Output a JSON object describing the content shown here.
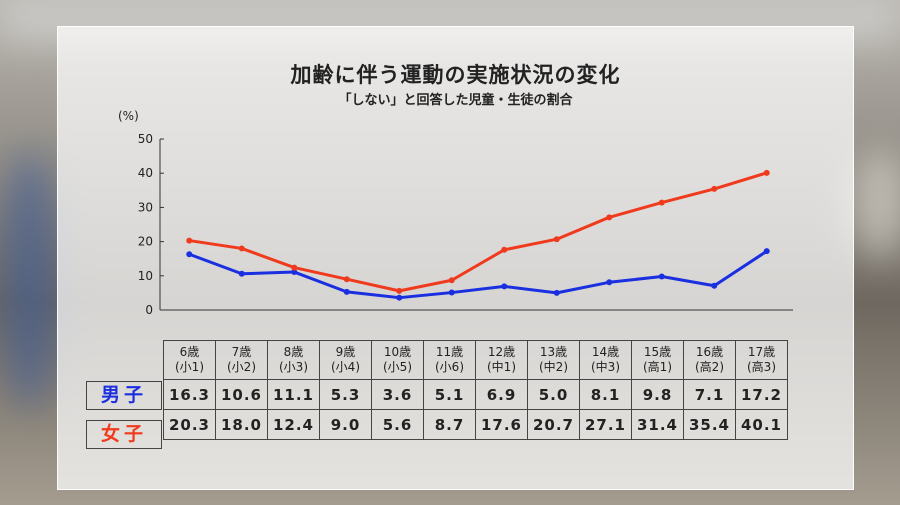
{
  "chart_data": {
    "type": "line",
    "title": "加齢に伴う運動の実施状況の変化",
    "subtitle": "「しない」と回答した児童・生徒の割合",
    "ylabel": "(%)",
    "ylim": [
      0,
      50
    ],
    "yticks": [
      0,
      10,
      20,
      30,
      40,
      50
    ],
    "grid": false,
    "categories": [
      {
        "age": "6歳",
        "grade": "(小1)"
      },
      {
        "age": "7歳",
        "grade": "(小2)"
      },
      {
        "age": "8歳",
        "grade": "(小3)"
      },
      {
        "age": "9歳",
        "grade": "(小4)"
      },
      {
        "age": "10歳",
        "grade": "(小5)"
      },
      {
        "age": "11歳",
        "grade": "(小6)"
      },
      {
        "age": "12歳",
        "grade": "(中1)"
      },
      {
        "age": "13歳",
        "grade": "(中2)"
      },
      {
        "age": "14歳",
        "grade": "(中3)"
      },
      {
        "age": "15歳",
        "grade": "(高1)"
      },
      {
        "age": "16歳",
        "grade": "(高2)"
      },
      {
        "age": "17歳",
        "grade": "(高3)"
      }
    ],
    "series": [
      {
        "name": "男子",
        "color": "#1a2fe0",
        "values": [
          16.3,
          10.6,
          11.1,
          5.3,
          3.6,
          5.1,
          6.9,
          5.0,
          8.1,
          9.8,
          7.1,
          17.2
        ],
        "labels": [
          "16.3",
          "10.6",
          "11.1",
          "5.3",
          "3.6",
          "5.1",
          "6.9",
          "5.0",
          "8.1",
          "9.8",
          "7.1",
          "17.2"
        ]
      },
      {
        "name": "女子",
        "color": "#f03a1e",
        "values": [
          20.3,
          18.0,
          12.4,
          9.0,
          5.6,
          8.7,
          17.6,
          20.7,
          27.1,
          31.4,
          35.4,
          40.1
        ],
        "labels": [
          "20.3",
          "18.0",
          "12.4",
          "9.0",
          "5.6",
          "8.7",
          "17.6",
          "20.7",
          "27.1",
          "31.4",
          "35.4",
          "40.1"
        ]
      }
    ]
  }
}
